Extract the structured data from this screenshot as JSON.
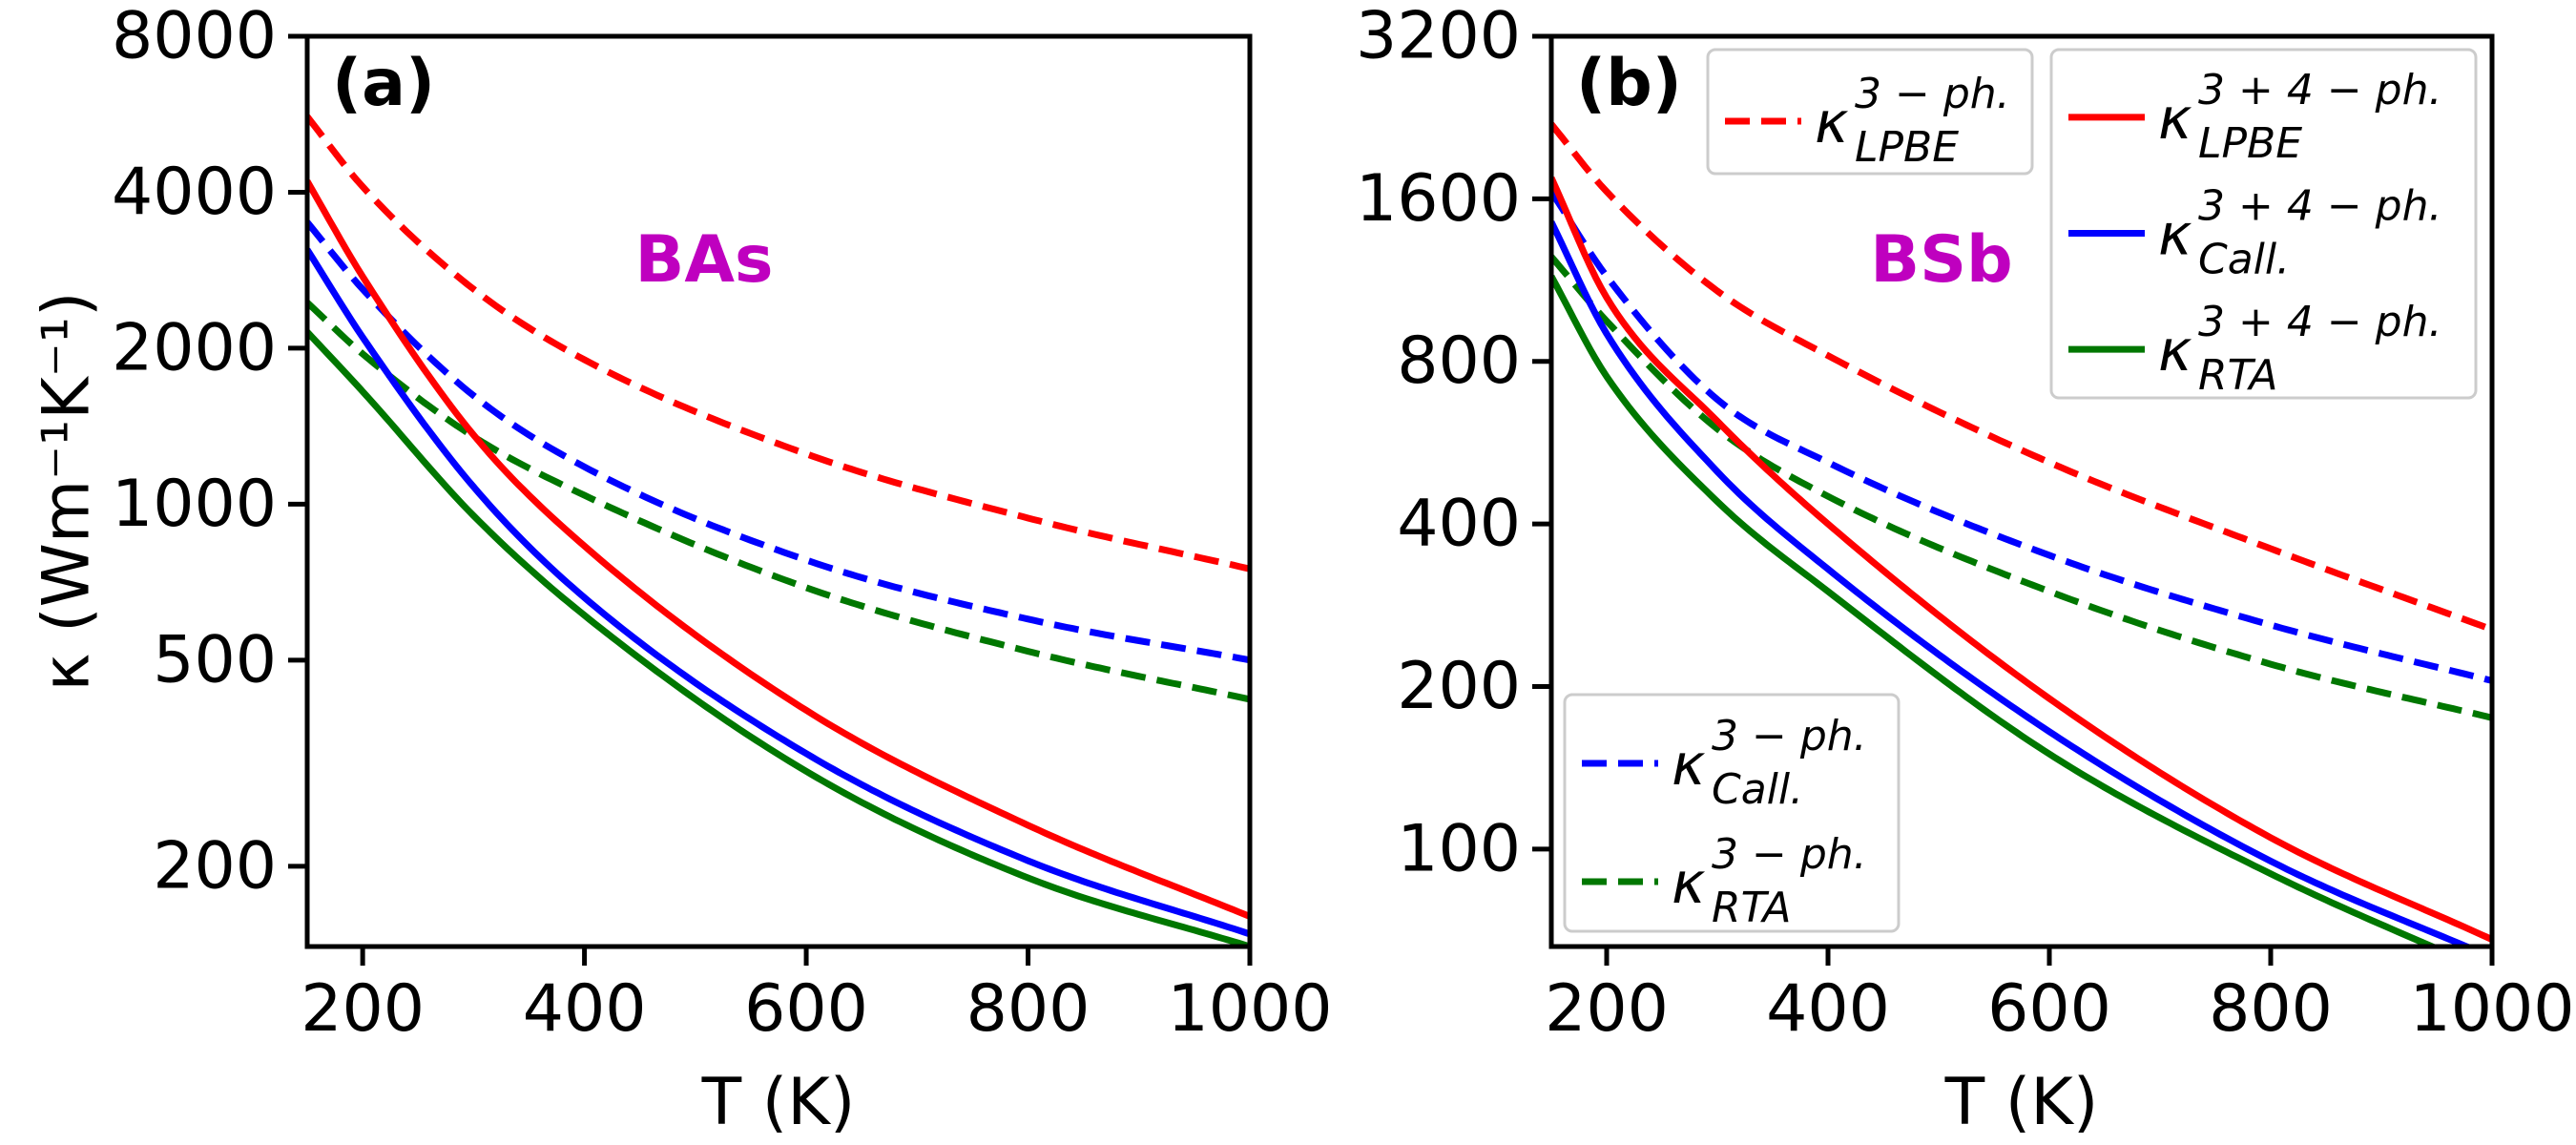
{
  "chart_data": [
    {
      "id": "a",
      "type": "line",
      "panel_label": "(a)",
      "annotation": "BAs",
      "annotation_color": "#bf00bf",
      "xlabel": "T (K)",
      "ylabel": "κ (Wm⁻¹K⁻¹)",
      "yscale": "log",
      "xlim": [
        150,
        1000
      ],
      "ylim": [
        140,
        8000
      ],
      "xticks": [
        200,
        400,
        600,
        800,
        1000
      ],
      "xtick_labels": [
        "200",
        "400",
        "600",
        "800",
        "1000"
      ],
      "yticks": [
        200,
        500,
        1000,
        2000,
        4000,
        8000
      ],
      "ytick_labels": [
        "200",
        "500",
        "1000",
        "2000",
        "4000",
        "8000"
      ],
      "series": [
        {
          "name": "κ_LPBE^{3-ph.}",
          "color": "#ff0000",
          "style": "dashed",
          "x": [
            150,
            200,
            300,
            400,
            600,
            800,
            1000
          ],
          "values": [
            5600,
            4100,
            2600,
            1900,
            1250,
            940,
            750
          ]
        },
        {
          "name": "κ_Call.^{3-ph.}",
          "color": "#0000ff",
          "style": "dashed",
          "x": [
            150,
            200,
            300,
            400,
            600,
            800,
            1000
          ],
          "values": [
            3500,
            2600,
            1620,
            1180,
            780,
            600,
            500
          ]
        },
        {
          "name": "κ_RTA^{3-ph.}",
          "color": "#007700",
          "style": "dashed",
          "x": [
            150,
            200,
            300,
            400,
            600,
            800,
            1000
          ],
          "values": [
            2450,
            1950,
            1350,
            1040,
            690,
            520,
            420
          ]
        },
        {
          "name": "κ_LPBE^{3+4-ph.}",
          "color": "#ff0000",
          "style": "solid",
          "x": [
            150,
            200,
            300,
            400,
            600,
            800,
            1000
          ],
          "values": [
            4200,
            2750,
            1360,
            830,
            400,
            240,
            160
          ]
        },
        {
          "name": "κ_Call.^{3+4-ph.}",
          "color": "#0000ff",
          "style": "solid",
          "x": [
            150,
            200,
            300,
            400,
            600,
            800,
            1000
          ],
          "values": [
            3100,
            2100,
            1080,
            660,
            330,
            205,
            148
          ]
        },
        {
          "name": "κ_RTA^{3+4-ph.}",
          "color": "#007700",
          "style": "solid",
          "x": [
            150,
            200,
            300,
            400,
            600,
            800,
            1000
          ],
          "values": [
            2150,
            1650,
            950,
            610,
            305,
            190,
            140
          ]
        }
      ]
    },
    {
      "id": "b",
      "type": "line",
      "panel_label": "(b)",
      "annotation": "BSb",
      "annotation_color": "#bf00bf",
      "xlabel": "T (K)",
      "ylabel": "",
      "yscale": "log",
      "xlim": [
        150,
        1000
      ],
      "ylim": [
        66,
        3200
      ],
      "xticks": [
        200,
        400,
        600,
        800,
        1000
      ],
      "xtick_labels": [
        "200",
        "400",
        "600",
        "800",
        "1000"
      ],
      "yticks": [
        100,
        200,
        400,
        800,
        1600,
        3200
      ],
      "ytick_labels": [
        "100",
        "200",
        "400",
        "800",
        "1600",
        "3200"
      ],
      "series": [
        {
          "name": "κ_LPBE^{3-ph.}",
          "color": "#ff0000",
          "style": "dashed",
          "x": [
            150,
            200,
            300,
            400,
            600,
            800,
            1000
          ],
          "values": [
            2200,
            1650,
            1080,
            820,
            520,
            360,
            255
          ]
        },
        {
          "name": "κ_Call.^{3-ph.}",
          "color": "#0000ff",
          "style": "dashed",
          "x": [
            150,
            200,
            300,
            400,
            600,
            800,
            1000
          ],
          "values": [
            1650,
            1150,
            680,
            520,
            350,
            260,
            205
          ]
        },
        {
          "name": "κ_RTA^{3-ph.}",
          "color": "#007700",
          "style": "dashed",
          "x": [
            150,
            200,
            300,
            400,
            600,
            800,
            1000
          ],
          "values": [
            1250,
            950,
            600,
            450,
            300,
            220,
            175
          ]
        },
        {
          "name": "κ_LPBE^{3+4-ph.}",
          "color": "#ff0000",
          "style": "solid",
          "x": [
            150,
            200,
            300,
            400,
            600,
            800,
            1000
          ],
          "values": [
            1750,
            1050,
            620,
            400,
            190,
            105,
            68
          ]
        },
        {
          "name": "κ_Call.^{3+4-ph.}",
          "color": "#0000ff",
          "style": "solid",
          "x": [
            150,
            200,
            300,
            400,
            600,
            800,
            1000
          ],
          "values": [
            1450,
            900,
            500,
            330,
            165,
            95,
            63
          ]
        },
        {
          "name": "κ_RTA^{3+4-ph.}",
          "color": "#007700",
          "style": "solid",
          "x": [
            150,
            200,
            300,
            400,
            600,
            800,
            1000
          ],
          "values": [
            1150,
            750,
            440,
            300,
            150,
            90,
            59
          ]
        }
      ]
    }
  ],
  "legends": {
    "b_top_left": [
      {
        "series_index": 0,
        "base": "κ",
        "sup": "3 − ph.",
        "sub": "LPBE"
      }
    ],
    "b_top_right": [
      {
        "series_index": 3,
        "base": "κ",
        "sup": "3 + 4 − ph.",
        "sub": "LPBE"
      },
      {
        "series_index": 4,
        "base": "κ",
        "sup": "3 + 4 − ph.",
        "sub": "Call."
      },
      {
        "series_index": 5,
        "base": "κ",
        "sup": "3 + 4 − ph.",
        "sub": "RTA"
      }
    ],
    "b_bottom_left": [
      {
        "series_index": 1,
        "base": "κ",
        "sup": "3 − ph.",
        "sub": "Call."
      },
      {
        "series_index": 2,
        "base": "κ",
        "sup": "3 − ph.",
        "sub": "RTA"
      }
    ]
  }
}
